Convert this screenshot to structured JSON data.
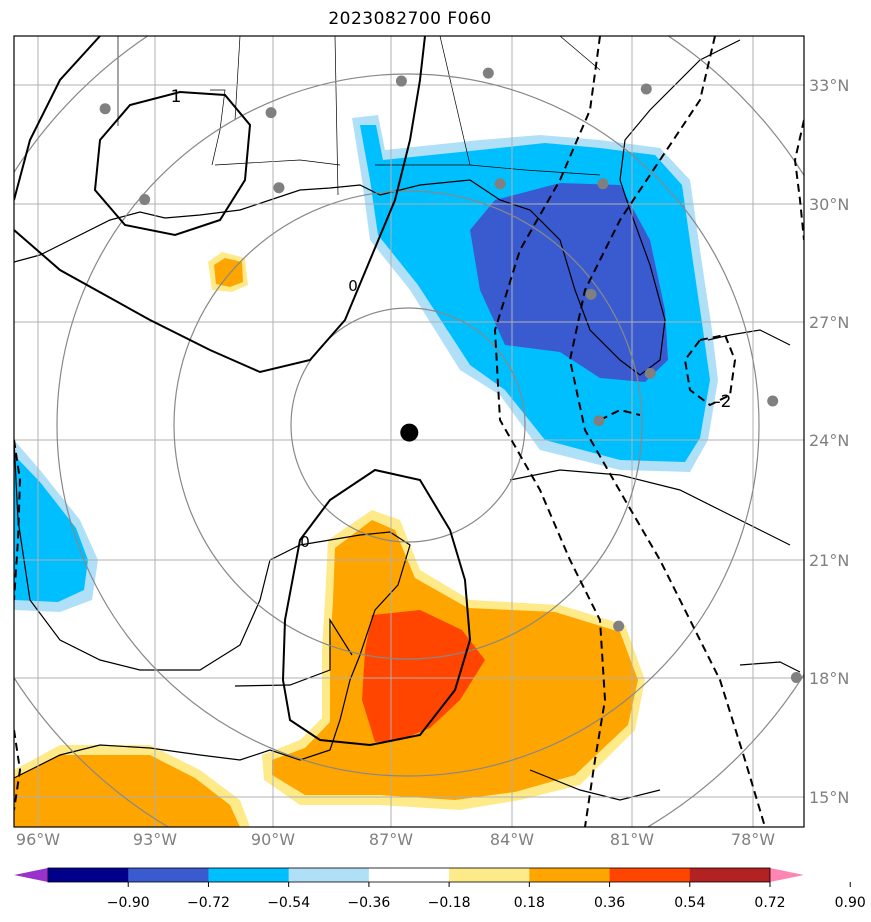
{
  "title": "2023082700 F060",
  "lon_labels": [
    "96°W",
    "93°W",
    "90°W",
    "87°W",
    "84°W",
    "81°W",
    "78°W"
  ],
  "lat_labels": [
    "33°N",
    "30°N",
    "27°N",
    "24°N",
    "21°N",
    "18°N",
    "15°N"
  ],
  "colorbar": {
    "ticks": [
      "−0.90",
      "−0.72",
      "−0.54",
      "−0.36",
      "−0.18",
      "0.18",
      "0.36",
      "0.54",
      "0.72",
      "0.90"
    ],
    "colors": [
      "#9932cc",
      "#00008b",
      "#3a5bd0",
      "#00bfff",
      "#b0e0f7",
      "#ffffff",
      "#ffea8a",
      "#ffa500",
      "#ff4500",
      "#b22222",
      "#ff85b5"
    ]
  },
  "contour_labels": [
    "1",
    "0",
    "0",
    "-2"
  ],
  "storm_center": {
    "lon": -86.6,
    "lat": 24.2
  },
  "stations": [
    {
      "lon": -94.3,
      "lat": 32.4
    },
    {
      "lon": -90.1,
      "lat": 32.3
    },
    {
      "lon": -86.8,
      "lat": 33.1
    },
    {
      "lon": -84.6,
      "lat": 33.3
    },
    {
      "lon": -80.6,
      "lat": 32.9
    },
    {
      "lon": -93.3,
      "lat": 30.1
    },
    {
      "lon": -89.9,
      "lat": 30.4
    },
    {
      "lon": -84.3,
      "lat": 30.5
    },
    {
      "lon": -81.7,
      "lat": 30.5
    },
    {
      "lon": -82.0,
      "lat": 27.7
    },
    {
      "lon": -80.5,
      "lat": 25.7
    },
    {
      "lon": -81.8,
      "lat": 24.5
    },
    {
      "lon": -77.4,
      "lat": 25.0
    },
    {
      "lon": -81.3,
      "lat": 19.3
    },
    {
      "lon": -76.8,
      "lat": 18.0
    }
  ]
}
